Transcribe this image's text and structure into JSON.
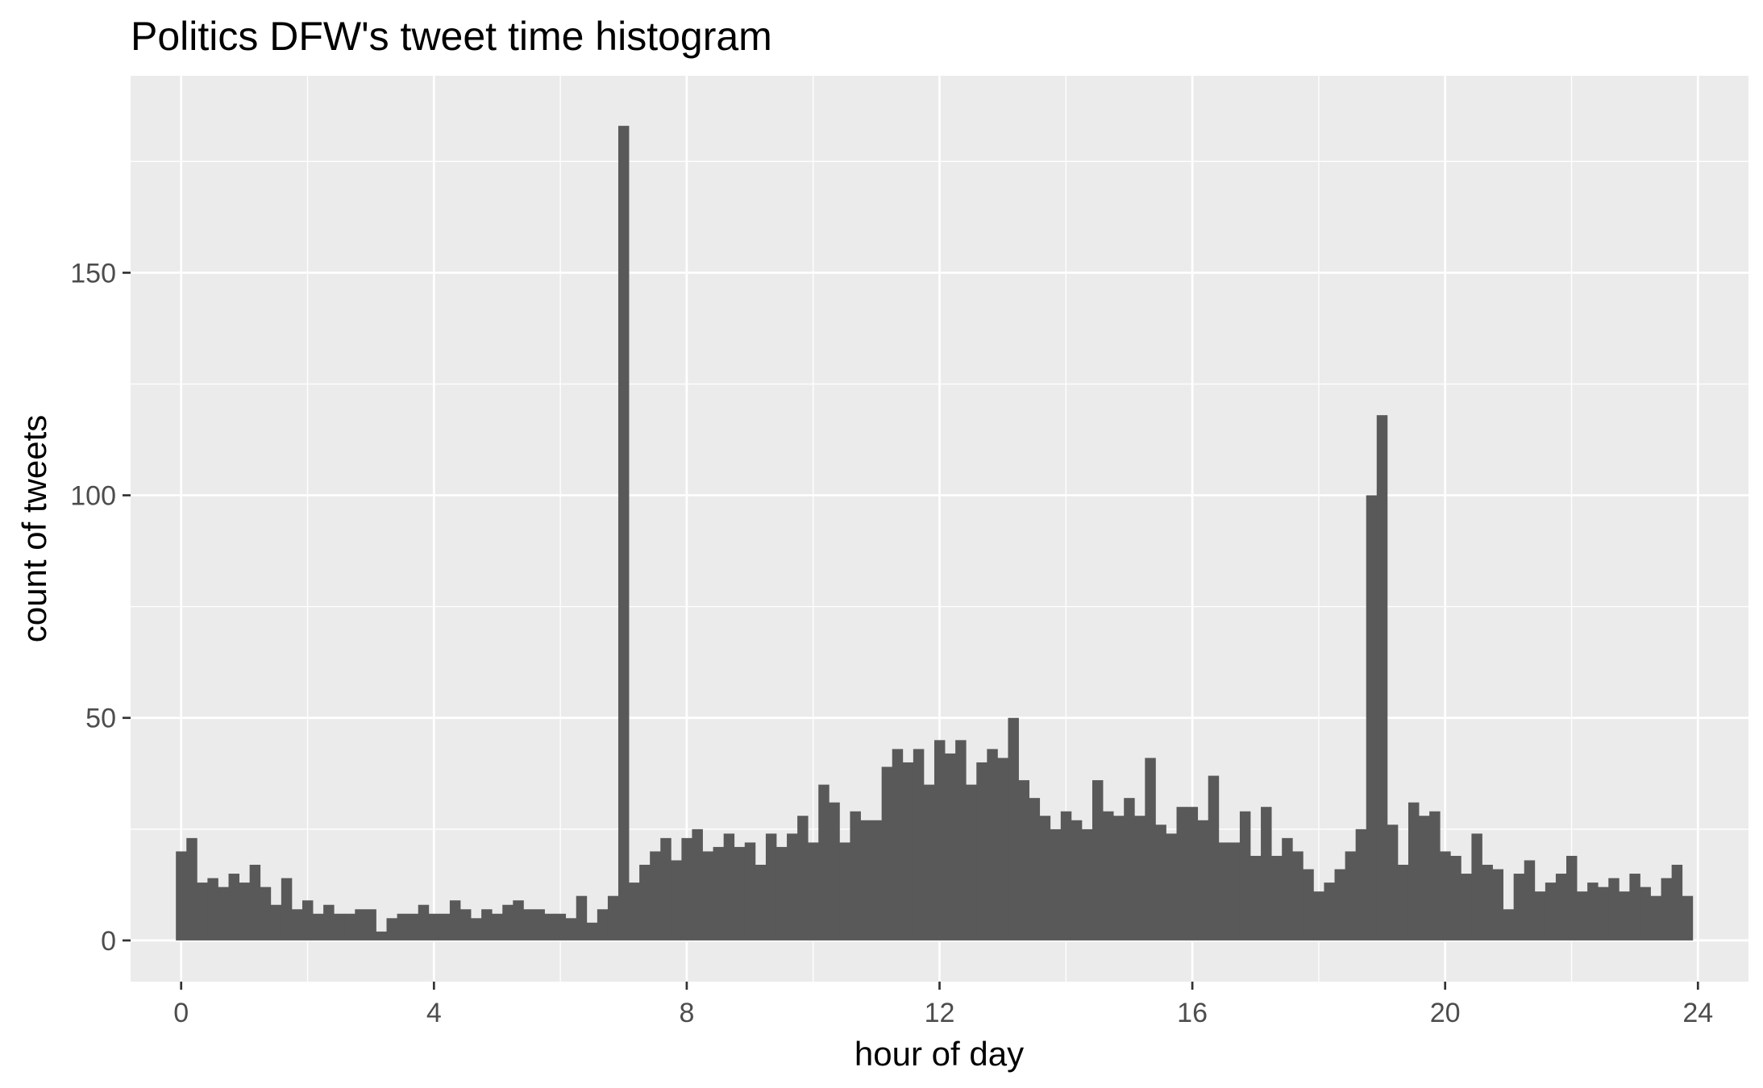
{
  "chart_data": {
    "type": "bar",
    "title": "Politics DFW's tweet time histogram",
    "xlabel": "hour of day",
    "ylabel": "count of tweets",
    "xlim": [
      -0.8,
      24.8
    ],
    "ylim": [
      -9.25,
      194.25
    ],
    "x_ticks": [
      0,
      4,
      8,
      12,
      16,
      20,
      24
    ],
    "y_ticks": [
      0,
      50,
      100,
      150
    ],
    "x_tick_labels": [
      "0",
      "4",
      "8",
      "12",
      "16",
      "20",
      "24"
    ],
    "y_tick_labels": [
      "0",
      "50",
      "100",
      "150"
    ],
    "grid": true,
    "bar_color": "#595959",
    "panel_color": "#ebebeb",
    "grid_color": "#ffffff",
    "bin_width": 0.16667,
    "x_start": -0.08333,
    "values": [
      20,
      23,
      13,
      14,
      12,
      15,
      13,
      17,
      12,
      8,
      14,
      7,
      9,
      6,
      8,
      6,
      6,
      7,
      7,
      2,
      5,
      6,
      6,
      8,
      6,
      6,
      9,
      7,
      5,
      7,
      6,
      8,
      9,
      7,
      7,
      6,
      6,
      5,
      10,
      4,
      7,
      10,
      183,
      13,
      17,
      20,
      23,
      18,
      23,
      25,
      20,
      21,
      24,
      21,
      22,
      17,
      24,
      21,
      24,
      28,
      22,
      35,
      31,
      22,
      29,
      27,
      27,
      39,
      43,
      40,
      43,
      35,
      45,
      42,
      45,
      35,
      40,
      43,
      41,
      50,
      36,
      32,
      28,
      25,
      29,
      27,
      25,
      36,
      29,
      28,
      32,
      28,
      41,
      26,
      24,
      30,
      30,
      27,
      37,
      22,
      22,
      29,
      19,
      30,
      19,
      23,
      20,
      16,
      11,
      13,
      16,
      20,
      25,
      100,
      118,
      26,
      17,
      31,
      28,
      29,
      20,
      19,
      15,
      24,
      17,
      16,
      7,
      15,
      18,
      11,
      13,
      15,
      19,
      11,
      13,
      12,
      14,
      11,
      15,
      12,
      10,
      14,
      17,
      10
    ]
  }
}
